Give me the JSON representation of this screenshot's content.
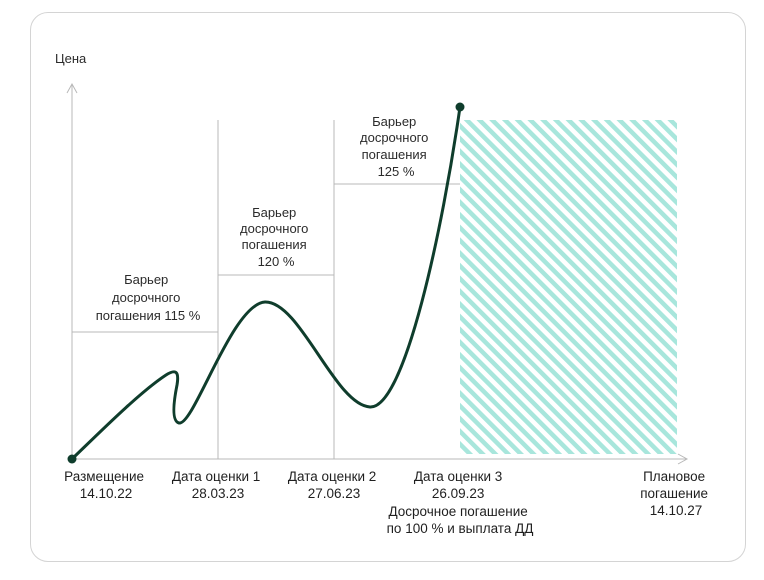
{
  "diagram": {
    "y_axis_label": "Цена",
    "barriers": [
      {
        "lines": [
          "Барьер",
          "досрочного",
          "погашения 115 %"
        ]
      },
      {
        "lines": [
          "Барьер",
          "досрочного",
          "погашения",
          "120 %"
        ]
      },
      {
        "lines": [
          "Барьер",
          "досрочного",
          "погашения",
          "125 %"
        ]
      }
    ],
    "x_labels": [
      {
        "title": "Размещение",
        "date": "14.10.22"
      },
      {
        "title": "Дата оценки 1",
        "date": "28.03.23"
      },
      {
        "title": "Дата оценки 2",
        "date": "27.06.23"
      },
      {
        "title": "Дата оценки 3",
        "date": "26.09.23",
        "note_lines": [
          "Досрочное погашение",
          "по 100 % и выплата ДД"
        ]
      },
      {
        "title_lines": [
          "Плановое",
          "погашение"
        ],
        "date": "14.10.27"
      }
    ],
    "colors": {
      "curve": "#0f3d2c",
      "axis": "#b8b8b8",
      "hatch": "#a8e6dc",
      "text": "#2b2b2b"
    }
  }
}
